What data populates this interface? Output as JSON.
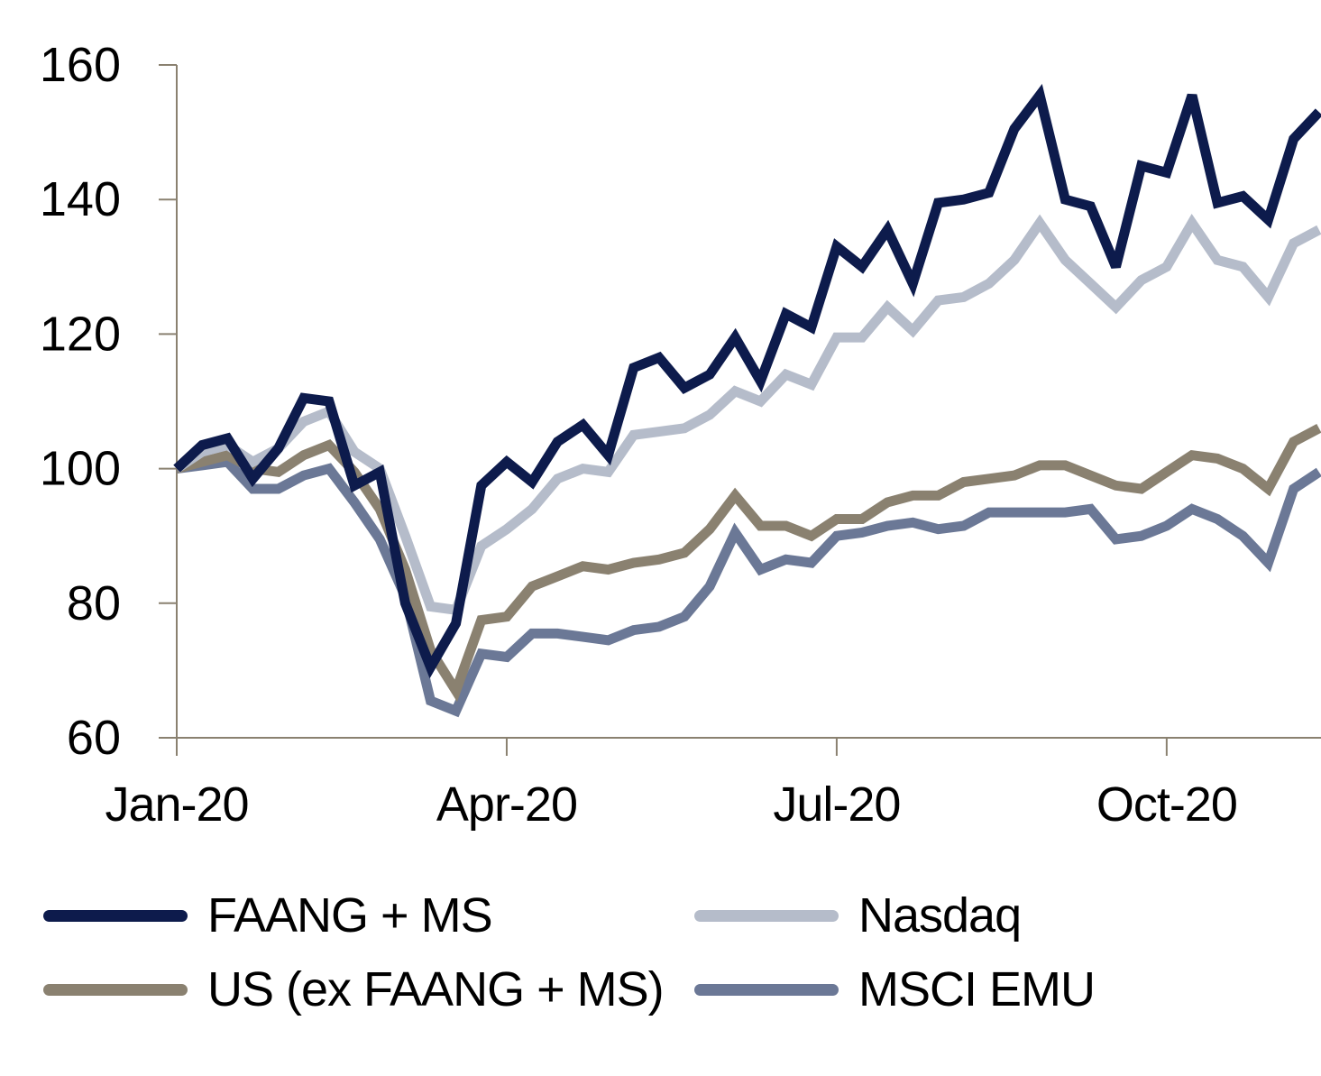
{
  "chart_data": {
    "type": "line",
    "title": "",
    "xlabel": "",
    "ylabel": "",
    "ylim": [
      60,
      160
    ],
    "yticks": [
      60,
      80,
      100,
      120,
      140,
      160
    ],
    "x_tick_labels": [
      "Jan-20",
      "Apr-20",
      "Jul-20",
      "Oct-20"
    ],
    "x_tick_index": [
      0,
      13,
      26,
      39
    ],
    "weeks": 46,
    "grid": false,
    "legend_position": "bottom",
    "series": [
      {
        "name": "FAANG + MS",
        "color": "#0d1b4c",
        "values": [
          100,
          103.5,
          104.5,
          98.5,
          103,
          110.5,
          110,
          97.5,
          99.5,
          80,
          70.5,
          77,
          97.5,
          101,
          98,
          104,
          106.5,
          102,
          115,
          116.5,
          112,
          114,
          119.5,
          113,
          123,
          121,
          133,
          130,
          135.5,
          127.5,
          139.5,
          140,
          141,
          150.5,
          155.5,
          140,
          139,
          130,
          145,
          144,
          155.5,
          139.5,
          140.5,
          137,
          149,
          153
        ]
      },
      {
        "name": "Nasdaq",
        "color": "#b5bcca",
        "values": [
          100,
          102.5,
          103.5,
          101,
          103,
          107,
          108.5,
          102.5,
          100,
          90,
          79.5,
          79,
          88.5,
          91,
          94,
          98.5,
          100,
          99.5,
          105,
          105.5,
          106,
          108,
          111.5,
          110,
          114,
          112.5,
          119.5,
          119.5,
          124,
          120.5,
          125,
          125.5,
          127.5,
          131,
          136.5,
          131,
          127.5,
          124,
          128,
          130,
          136.5,
          131,
          130,
          125.5,
          133.5,
          135.5
        ]
      },
      {
        "name": "US (ex FAANG + MS)",
        "color": "#8a8170",
        "values": [
          100,
          101,
          102,
          100,
          99.5,
          102,
          103.5,
          99.5,
          94,
          85,
          73,
          67,
          77.5,
          78,
          82.5,
          84,
          85.5,
          85,
          86,
          86.5,
          87.5,
          91,
          96,
          91.5,
          91.5,
          90,
          92.5,
          92.5,
          95,
          96,
          96,
          98,
          98.5,
          99,
          100.5,
          100.5,
          99,
          97.5,
          97,
          99.5,
          102,
          101.5,
          100,
          97,
          104,
          106
        ]
      },
      {
        "name": "MSCI EMU",
        "color": "#6b7896",
        "values": [
          100,
          100.5,
          101,
          97,
          97,
          99,
          100,
          95,
          89.5,
          81,
          65.5,
          64,
          72.5,
          72,
          75.5,
          75.5,
          75,
          74.5,
          76,
          76.5,
          78,
          82.5,
          90.5,
          85,
          86.5,
          86,
          90,
          90.5,
          91.5,
          92,
          91,
          91.5,
          93.5,
          93.5,
          93.5,
          93.5,
          94,
          89.5,
          90,
          91.5,
          94,
          92.5,
          90,
          86,
          97,
          99.5
        ]
      }
    ]
  }
}
